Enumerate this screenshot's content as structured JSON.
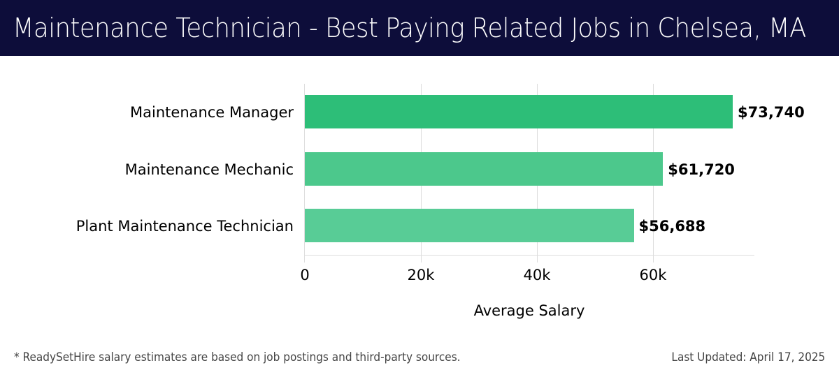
{
  "header": {
    "title": "Maintenance Technician - Best Paying Related Jobs in Chelsea, MA"
  },
  "chart_data": {
    "type": "bar",
    "orientation": "horizontal",
    "title": "Maintenance Technician - Best Paying Related Jobs in Chelsea, MA",
    "categories": [
      "Maintenance Manager",
      "Maintenance Mechanic",
      "Plant Maintenance Technician"
    ],
    "values": [
      73740,
      61720,
      56688
    ],
    "value_labels": [
      "$73,740",
      "$61,720",
      "$56,688"
    ],
    "bar_colors": [
      "#2dbe78",
      "#4cc88c",
      "#58cc96"
    ],
    "xlabel": "Average Salary",
    "ylabel": "",
    "xticks": [
      0,
      20000,
      40000,
      60000
    ],
    "xtick_labels": [
      "0",
      "20k",
      "40k",
      "60k"
    ],
    "xlim": [
      0,
      77500
    ],
    "grid": "vertical",
    "legend": "none"
  },
  "footer": {
    "note": "* ReadySetHire salary estimates are based on job postings and third-party sources.",
    "updated": "Last Updated: April 17, 2025"
  }
}
